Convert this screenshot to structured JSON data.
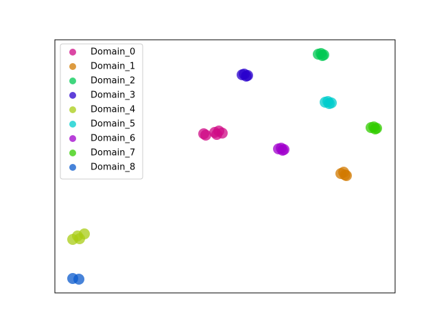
{
  "chart_data": {
    "type": "scatter",
    "legend": "upper left",
    "marker_opacity": 0.75,
    "xlim": [
      0,
      100
    ],
    "ylim": [
      0,
      100
    ],
    "series": [
      {
        "name": "Domain_0",
        "color": "#cf0a85",
        "x": [
          43.75,
          44.35,
          46.98,
          48.19,
          49.19,
          47.58
        ],
        "y": [
          62.87,
          62.33,
          63.41,
          63.96,
          63.14,
          62.6
        ]
      },
      {
        "name": "Domain_1",
        "color": "#d17a00",
        "x": [
          84.07,
          85.28,
          84.88,
          85.69
        ],
        "y": [
          47.15,
          46.61,
          47.7,
          46.34
        ]
      },
      {
        "name": "Domain_2",
        "color": "#00c853",
        "x": [
          77.42,
          78.63,
          78.23,
          79.03
        ],
        "y": [
          94.31,
          93.77,
          94.58,
          94.04
        ]
      },
      {
        "name": "Domain_3",
        "color": "#2a00cc",
        "x": [
          55.04,
          56.25,
          55.65,
          56.65
        ],
        "y": [
          86.18,
          85.64,
          86.45,
          85.91
        ]
      },
      {
        "name": "Domain_4",
        "color": "#a8cc14",
        "x": [
          5.24,
          6.65,
          7.26,
          8.67
        ],
        "y": [
          21.14,
          22.49,
          21.41,
          23.31
        ]
      },
      {
        "name": "Domain_5",
        "color": "#00cccc",
        "x": [
          79.44,
          80.65,
          80.24,
          81.25
        ],
        "y": [
          75.34,
          74.8,
          75.61,
          75.07
        ]
      },
      {
        "name": "Domain_6",
        "color": "#a000cc",
        "x": [
          65.73,
          66.94,
          66.53,
          67.34
        ],
        "y": [
          56.91,
          56.37,
          57.18,
          56.64
        ]
      },
      {
        "name": "Domain_7",
        "color": "#33cc00",
        "x": [
          92.94,
          94.15,
          93.75,
          94.56
        ],
        "y": [
          65.31,
          64.77,
          65.58,
          65.04
        ]
      },
      {
        "name": "Domain_8",
        "color": "#0a5acc",
        "x": [
          5.24,
          7.06
        ],
        "y": [
          5.69,
          5.42
        ]
      }
    ]
  }
}
